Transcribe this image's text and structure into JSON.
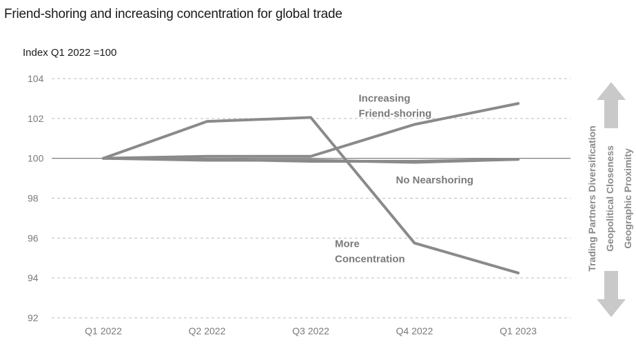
{
  "chart_data": {
    "type": "line",
    "title": "Friend-shoring and increasing concentration for global trade",
    "ylabel": "Index Q1 2022 =100",
    "xlabel": "",
    "categories": [
      "Q1 2022",
      "Q2 2022",
      "Q3 2022",
      "Q4 2022",
      "Q1 2023"
    ],
    "ylim": [
      92,
      104
    ],
    "yticks": [
      92,
      94,
      96,
      98,
      100,
      102,
      104
    ],
    "grid": "horizontal-dashed",
    "series": [
      {
        "values": [
          100,
          101.85,
          102.05,
          95.75,
          94.25
        ]
      },
      {
        "values": [
          100,
          100.1,
          100.1,
          101.7,
          102.75
        ]
      },
      {
        "values": [
          100,
          99.95,
          99.85,
          99.85,
          99.95
        ]
      },
      {
        "values": [
          100,
          99.9,
          99.9,
          99.8,
          99.95
        ]
      }
    ],
    "annotations": [
      {
        "lines": [
          "Increasing",
          "Friend-shoring"
        ],
        "x": "Q2 2022",
        "y": 102.85
      },
      {
        "lines": [
          "No Nearshoring"
        ],
        "x": "Q4 2022",
        "y": 98.75
      },
      {
        "lines": [
          "More",
          "Concentration"
        ],
        "x": "Q3 2022",
        "y": 95.55
      }
    ],
    "side_axis": {
      "labels": [
        "Trading Partners Diversification",
        "Geopolitical Closeness",
        "Geographic Proximity"
      ]
    },
    "colors": {
      "line": "#8a8a8a",
      "grid": "#bdbdbd",
      "baseline": "#6e6e6e",
      "arrow": "#c9c9c9",
      "tick": "#7a7a7a"
    }
  }
}
